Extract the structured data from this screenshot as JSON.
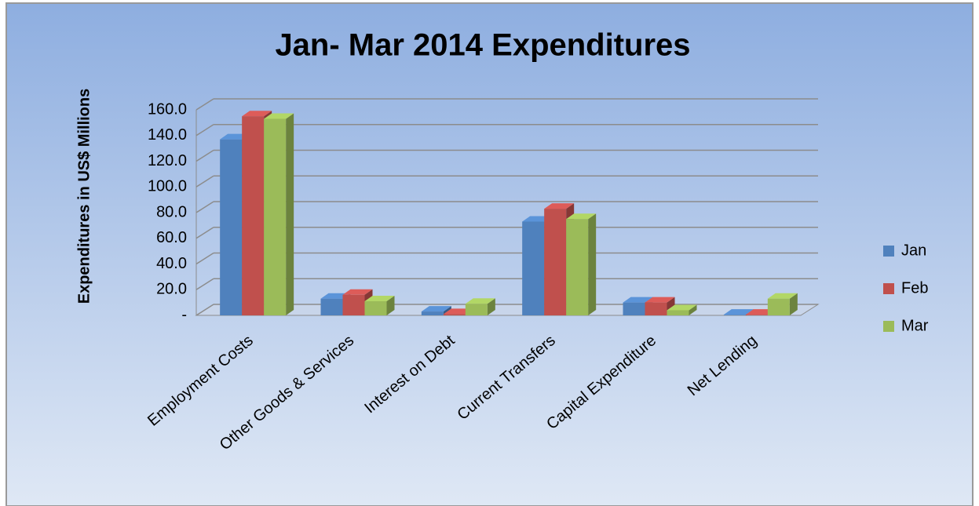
{
  "chart_data": {
    "type": "bar",
    "title": "Jan- Mar 2014 Expenditures",
    "y_label": "Expenditures in US$ Millions",
    "categories": [
      "Employment Costs",
      "Other Goods & Services",
      "Interest on Debt",
      "Current Transfers",
      "Capital Expenditure",
      "Net Lending"
    ],
    "series": [
      {
        "name": "Jan",
        "color": "#4f81bd",
        "values": [
          137,
          13,
          3,
          73,
          10,
          0.5
        ]
      },
      {
        "name": "Feb",
        "color": "#c0504d",
        "values": [
          155,
          16,
          1,
          83,
          10,
          0.5
        ]
      },
      {
        "name": "Mar",
        "color": "#9bbb59",
        "values": [
          153,
          11,
          9,
          75,
          4,
          13
        ]
      }
    ],
    "ylim": [
      0,
      160
    ],
    "yticks": [
      {
        "value": 0,
        "label": "-"
      },
      {
        "value": 20,
        "label": "20.0"
      },
      {
        "value": 40,
        "label": "40.0"
      },
      {
        "value": 60,
        "label": "60.0"
      },
      {
        "value": 80,
        "label": "80.0"
      },
      {
        "value": 100,
        "label": "100.0"
      },
      {
        "value": 120,
        "label": "120.0"
      },
      {
        "value": 140,
        "label": "140.0"
      },
      {
        "value": 160,
        "label": "160.0"
      }
    ],
    "grid": true,
    "legend": "right"
  }
}
